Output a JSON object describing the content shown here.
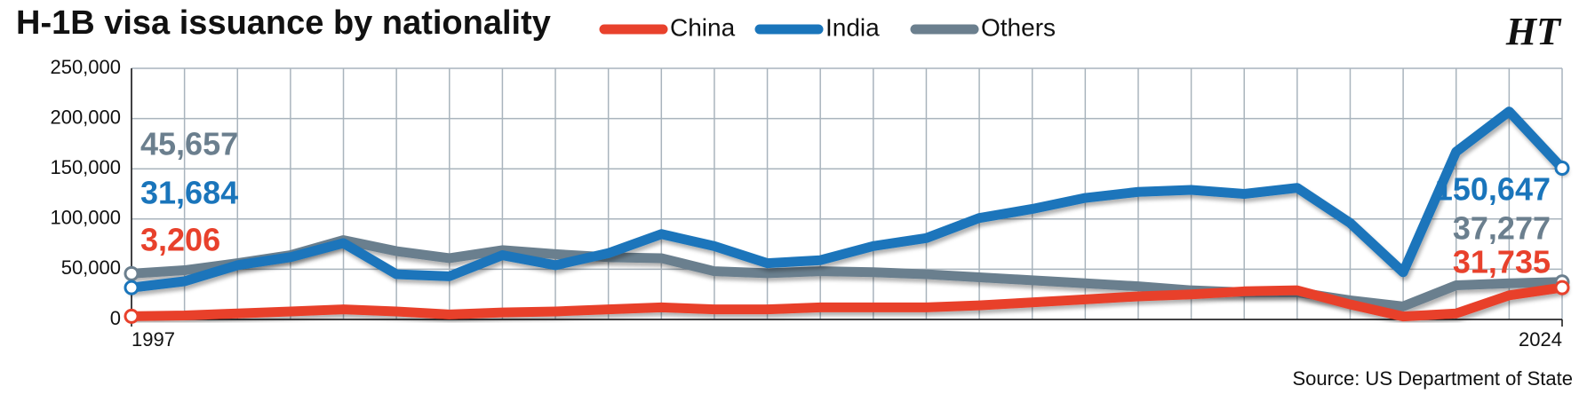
{
  "chart_data": {
    "type": "line",
    "title": "H-1B visa issuance by nationality",
    "source": "Source: US Department of State",
    "logo": "HT",
    "x": [
      1997,
      1998,
      1999,
      2000,
      2001,
      2002,
      2003,
      2004,
      2005,
      2006,
      2007,
      2008,
      2009,
      2010,
      2011,
      2012,
      2013,
      2014,
      2015,
      2016,
      2017,
      2018,
      2019,
      2020,
      2021,
      2022,
      2023,
      2024
    ],
    "xlim": [
      1997,
      2024
    ],
    "xticks": [
      1997,
      2024
    ],
    "ylim": [
      0,
      250000
    ],
    "yticks": [
      0,
      {
        "value": 50000,
        "label": "50,000"
      },
      {
        "value": 100000,
        "label": "100,000"
      },
      {
        "value": 150000,
        "label": "150,000"
      },
      {
        "value": 200000,
        "label": "200,000"
      },
      {
        "value": 250000,
        "label": "250,000"
      }
    ],
    "grid": true,
    "series": [
      {
        "name": "China",
        "color": "#e8412c",
        "values": [
          3206,
          4000,
          6000,
          8000,
          10000,
          8000,
          5000,
          7000,
          8000,
          10000,
          12000,
          10000,
          10000,
          12000,
          12000,
          12000,
          14000,
          17000,
          20000,
          23000,
          25000,
          28000,
          29000,
          15000,
          3000,
          6000,
          24000,
          31735
        ],
        "value_labels": [
          "3,206",
          null,
          null,
          null,
          null,
          null,
          null,
          null,
          null,
          null,
          null,
          null,
          null,
          null,
          null,
          null,
          null,
          null,
          null,
          null,
          null,
          null,
          null,
          null,
          null,
          null,
          null,
          "31,735"
        ]
      },
      {
        "name": "India",
        "color": "#1a75bb",
        "values": [
          31684,
          38000,
          54000,
          62000,
          76000,
          45000,
          43000,
          64000,
          54000,
          66000,
          85000,
          73000,
          56000,
          59000,
          73000,
          81000,
          101000,
          110000,
          121000,
          127000,
          129000,
          125000,
          131000,
          96000,
          47000,
          167000,
          207000,
          150647
        ],
        "value_labels": [
          "31,684",
          null,
          null,
          null,
          null,
          null,
          null,
          null,
          null,
          null,
          null,
          null,
          null,
          null,
          null,
          null,
          null,
          null,
          null,
          null,
          null,
          null,
          null,
          null,
          null,
          null,
          null,
          "150,647"
        ]
      },
      {
        "name": "Others",
        "color": "#6b7f8e",
        "values": [
          45657,
          49000,
          56000,
          64000,
          79000,
          68000,
          61000,
          69000,
          65000,
          62000,
          61000,
          48000,
          46000,
          48000,
          47000,
          45000,
          42000,
          39000,
          36000,
          33000,
          29000,
          27000,
          27000,
          19000,
          13000,
          34000,
          36000,
          37277
        ],
        "value_labels": [
          "45,657",
          null,
          null,
          null,
          null,
          null,
          null,
          null,
          null,
          null,
          null,
          null,
          null,
          null,
          null,
          null,
          null,
          null,
          null,
          null,
          null,
          null,
          null,
          null,
          null,
          null,
          null,
          "37,277"
        ]
      }
    ]
  }
}
